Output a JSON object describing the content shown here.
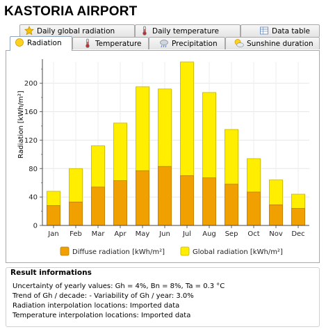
{
  "app": {
    "title": "KASTORIA AIRPORT"
  },
  "tabs_top": [
    {
      "label": "Daily global radiation",
      "icon": "star-icon"
    },
    {
      "label": "Daily temperature",
      "icon": "thermometer-icon"
    },
    {
      "label": "Data table",
      "icon": "table-icon"
    }
  ],
  "tabs_bottom": [
    {
      "label": "Radiation",
      "icon": "sun-icon",
      "active": true
    },
    {
      "label": "Temperature",
      "icon": "thermometer-icon"
    },
    {
      "label": "Precipitation",
      "icon": "cloud-rain-icon"
    },
    {
      "label": "Sunshine duration",
      "icon": "sun-cloud-icon"
    }
  ],
  "chart_data": {
    "type": "bar",
    "ylabel": "Radiation [kWh/m²]",
    "ylim": [
      0,
      230
    ],
    "yticks": [
      0,
      40,
      80,
      120,
      160,
      200
    ],
    "grid": true,
    "legend_position": "bottom",
    "categories": [
      "Jan",
      "Feb",
      "Mar",
      "Apr",
      "May",
      "Jun",
      "Jul",
      "Aug",
      "Sep",
      "Oct",
      "Nov",
      "Dec"
    ],
    "series": [
      {
        "name": "Diffuse radiation [kWh/m²]",
        "color": "#f0a000",
        "values": [
          28,
          33,
          54,
          63,
          77,
          83,
          70,
          67,
          58,
          47,
          29,
          24
        ]
      },
      {
        "name": "Global radiation [kWh/m²]",
        "color": "#ffee00",
        "values": [
          48,
          80,
          112,
          144,
          195,
          192,
          230,
          187,
          135,
          94,
          64,
          44
        ]
      }
    ]
  },
  "result": {
    "heading": "Result informations",
    "lines": [
      "Uncertainty of yearly values: Gh = 4%, Bn = 8%, Ta = 0.3 °C",
      "Trend of Gh / decade:  -    Variability of Gh / year: 3.0%",
      "Radiation interpolation locations: Imported data",
      "Temperature interpolation locations: Imported data"
    ]
  }
}
